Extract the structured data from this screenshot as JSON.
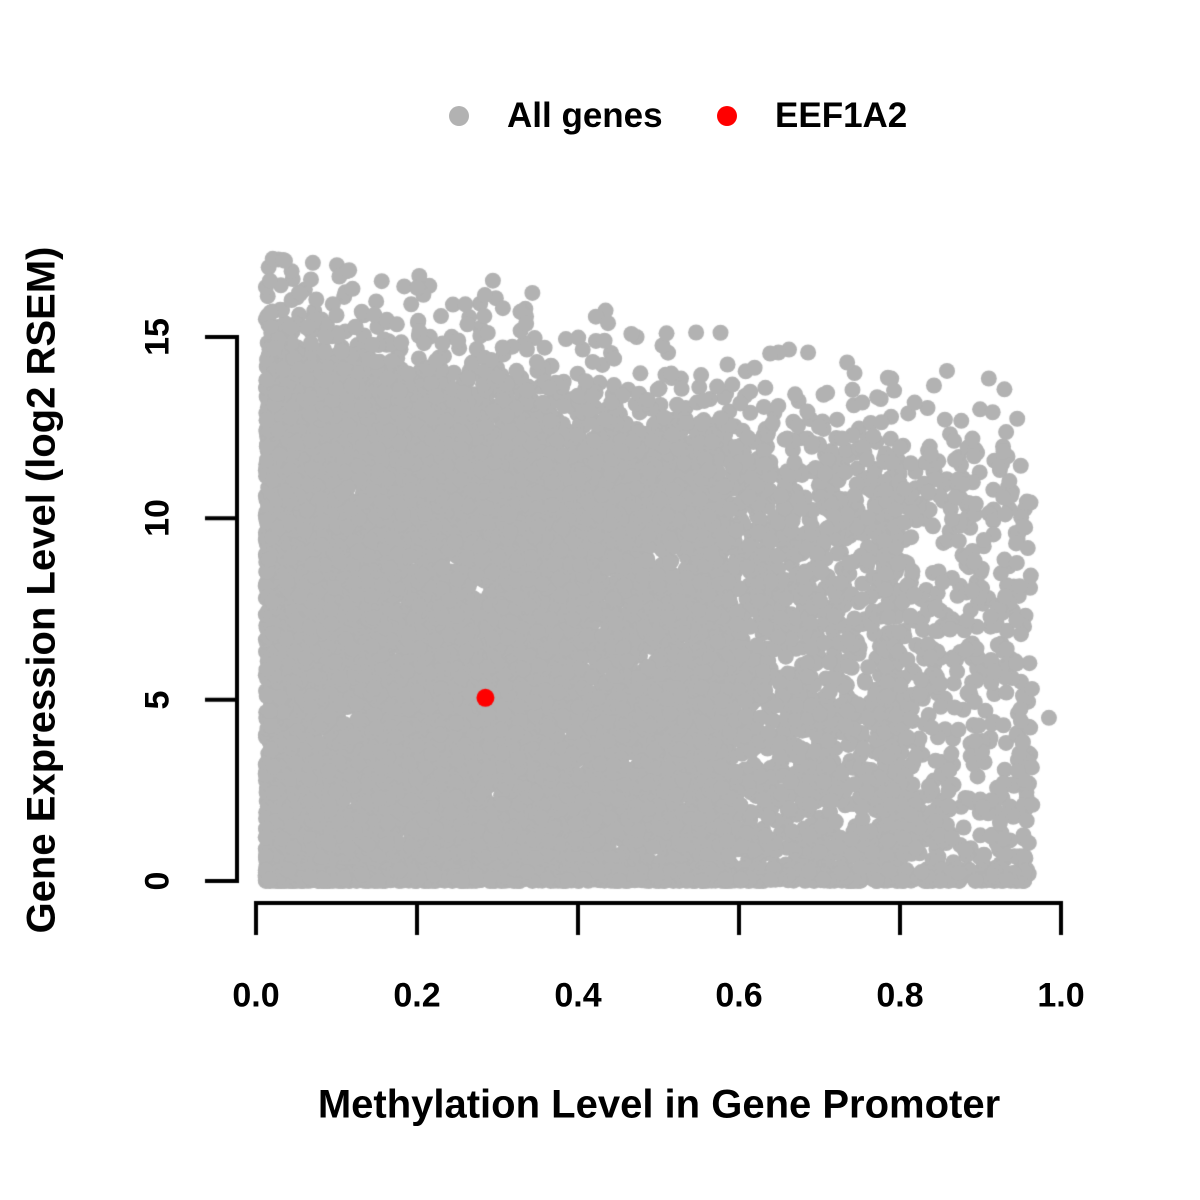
{
  "legend": {
    "items": [
      {
        "label": "All genes",
        "color": "#b2b2b2"
      },
      {
        "label": "EEF1A2",
        "color": "#ff0000"
      }
    ]
  },
  "chart_data": {
    "type": "scatter",
    "title": "",
    "xlabel": "Methylation Level in Gene Promoter",
    "ylabel": "Gene Expression Level (log2 RSEM)",
    "x_tick_labels": [
      "0.0",
      "0.2",
      "0.4",
      "0.6",
      "0.8",
      "1.0"
    ],
    "x_tick_values": [
      0.0,
      0.2,
      0.4,
      0.6,
      0.8,
      1.0
    ],
    "y_tick_labels": [
      "0",
      "5",
      "10",
      "15"
    ],
    "y_tick_values": [
      0,
      5,
      10,
      15
    ],
    "xlim": [
      0,
      1
    ],
    "ylim": [
      0,
      15
    ],
    "grid": false,
    "legend_position": "top-center",
    "background_color": "#ffffff",
    "axis_color": "#000000",
    "series": [
      {
        "name": "All genes",
        "color": "#b2b2b2",
        "marker": "circle",
        "marker_radius_px": 8,
        "summary": {
          "n_points_approx": 15000,
          "x_range": [
            0.01,
            0.985
          ],
          "y_range": [
            0,
            17.1
          ],
          "shape": "very dense triangular cloud; upper envelope y ≈ 14.8 − 4·x with sparse outliers up to ~2 units above; essentially solid for x < 0.55, progressively sparser toward x ≈ 0.97; dense strip of points along y = 0 across the full x range"
        },
        "notable_points": [
          [
            0.036,
            17.1
          ],
          [
            0.055,
            16.2
          ],
          [
            0.1,
            15.6
          ],
          [
            0.175,
            15.35
          ],
          [
            0.26,
            15.9
          ],
          [
            0.51,
            15.1
          ],
          [
            0.728,
            12.2
          ],
          [
            0.89,
            12.2
          ],
          [
            0.95,
            11.45
          ],
          [
            0.985,
            4.5
          ],
          [
            0.96,
            1.05
          ]
        ]
      },
      {
        "name": "EEF1A2",
        "color": "#ff0000",
        "marker": "circle",
        "marker_radius_px": 9,
        "points": [
          [
            0.285,
            5.05
          ]
        ]
      }
    ],
    "render_model": {
      "seed": 20,
      "point_radius": 8,
      "envelope_intercept": 14.8,
      "envelope_slope": -4.0,
      "envelope_noise_sd": 0.3,
      "regions": [
        {
          "n": 8000,
          "xmin": 0.012,
          "xmax": 0.58,
          "xpow": 1.25,
          "mode": "fill"
        },
        {
          "n": 1500,
          "xmin": 0.55,
          "xmax": 0.8,
          "xpow": 1.2,
          "mode": "fill"
        },
        {
          "n": 600,
          "xmin": 0.78,
          "xmax": 0.965,
          "xpow": 1.25,
          "mode": "fill"
        },
        {
          "n": 900,
          "xmin": 0.012,
          "xmax": 0.955,
          "xpow": 1.6,
          "mode": "bottom",
          "bottom_max": 0.35
        },
        {
          "n": 330,
          "xmin": 0.012,
          "xmax": 0.95,
          "xpow": 1.5,
          "mode": "above",
          "exp_scale": 0.9,
          "cap_intercept": 17.2,
          "cap_slope": -2.2,
          "cap_above_env": 2.3
        }
      ]
    }
  }
}
